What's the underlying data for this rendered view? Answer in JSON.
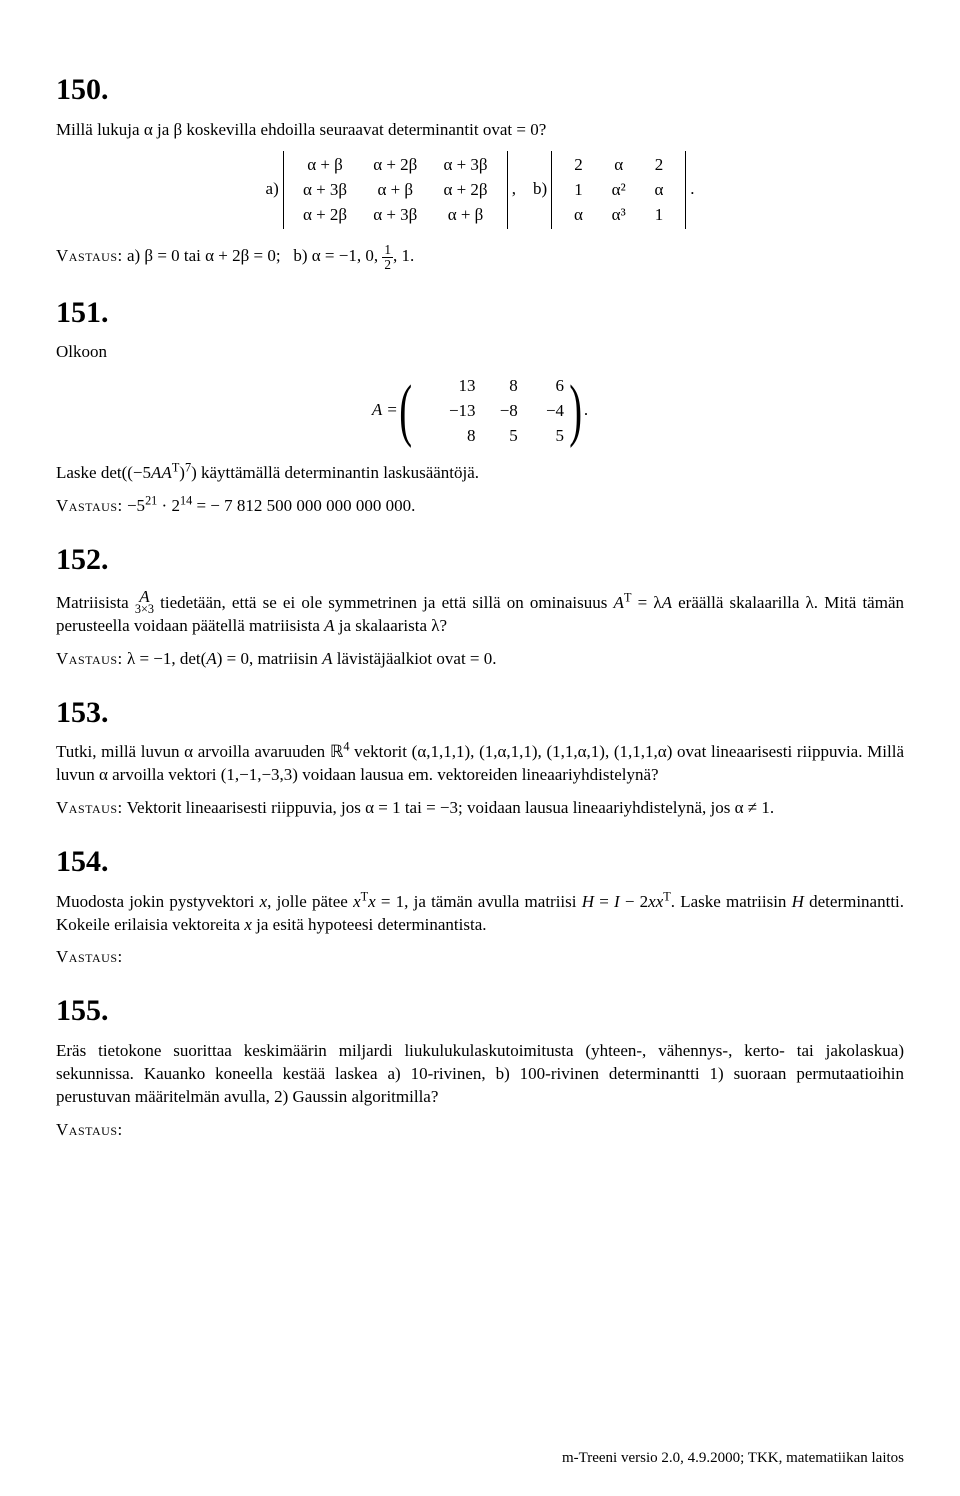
{
  "p150": {
    "num": "150.",
    "q": "Millä lukuja α ja β koskevilla ehdoilla seuraavat determinantit ovat = 0?",
    "det_a_label": "a)",
    "det_a": [
      [
        "α + β",
        "α + 2β",
        "α + 3β"
      ],
      [
        "α + 3β",
        "α + β",
        "α + 2β"
      ],
      [
        "α + 2β",
        "α + 3β",
        "α + β"
      ]
    ],
    "comma": ",",
    "det_b_label": "b)",
    "det_b": [
      [
        "2",
        "α",
        "2"
      ],
      [
        "1",
        "α²",
        "α"
      ],
      [
        "α",
        "α³",
        "1"
      ]
    ],
    "period": ".",
    "ans": "a) β = 0 tai α + 2β = 0; b) α = −1, 0, ½, 1."
  },
  "p151": {
    "num": "151.",
    "intro": "Olkoon",
    "A_eq": "A =",
    "A": [
      [
        "13",
        "8",
        "6"
      ],
      [
        "−13",
        "−8",
        "−4"
      ],
      [
        "8",
        "5",
        "5"
      ]
    ],
    "period": ".",
    "task": "Laske det((−5AAᵀ)⁷) käyttämällä determinantin laskusääntöjä.",
    "ans": "−5²¹ · 2¹⁴ = − 7 812 500 000 000 000 000."
  },
  "p152": {
    "num": "152.",
    "q1a": "Matriisista ",
    "q1_under_top": "A",
    "q1_under_bot": "3×3",
    "q1b": " tiedetään, että se ei ole symmetrinen ja että sillä on ominaisuus Aᵀ = λA eräällä skalaarilla λ. Mitä tämän perusteella voidaan päätellä matriisista A ja skalaarista λ?",
    "ans": "λ = −1, det(A) = 0, matriisin A lävistäjäalkiot ovat = 0."
  },
  "p153": {
    "num": "153.",
    "q1": "Tutki, millä luvun α arvoilla avaruuden ℝ⁴ vektorit (α,1,1,1), (1,α,1,1), (1,1,α,1), (1,1,1,α) ovat lineaarisesti riippuvia. Millä luvun α arvoilla vektori (1,−1,−3,3) voidaan lausua em. vektoreiden lineaariyhdistelynä?",
    "ans": "Vektorit lineaarisesti riippuvia, jos α = 1 tai = −3; voidaan lausua lineaariyhdistelynä, jos α ≠ 1."
  },
  "p154": {
    "num": "154.",
    "q": "Muodosta jokin pystyvektori x, jolle pätee xᵀx = 1, ja tämän avulla matriisi H = I − 2xxᵀ. Laske matriisin H determinantti. Kokeile erilaisia vektoreita x ja esitä hypoteesi determinantista.",
    "ans": ""
  },
  "p155": {
    "num": "155.",
    "q": "Eräs tietokone suorittaa keskimäärin miljardi liukulukulaskutoimitusta (yhteen-, vähennys-, kerto- tai jakolaskua) sekunnissa. Kauanko koneella kestää laskea a) 10-rivinen, b) 100-rivinen determinantti 1) suoraan permutaatioihin perustuvan määritelmän avulla, 2) Gaussin algoritmilla?",
    "ans": ""
  },
  "labels": {
    "vastaus": "Vastaus:"
  },
  "footer": "m-Treeni versio 2.0, 4.9.2000; TKK, matematiikan laitos"
}
